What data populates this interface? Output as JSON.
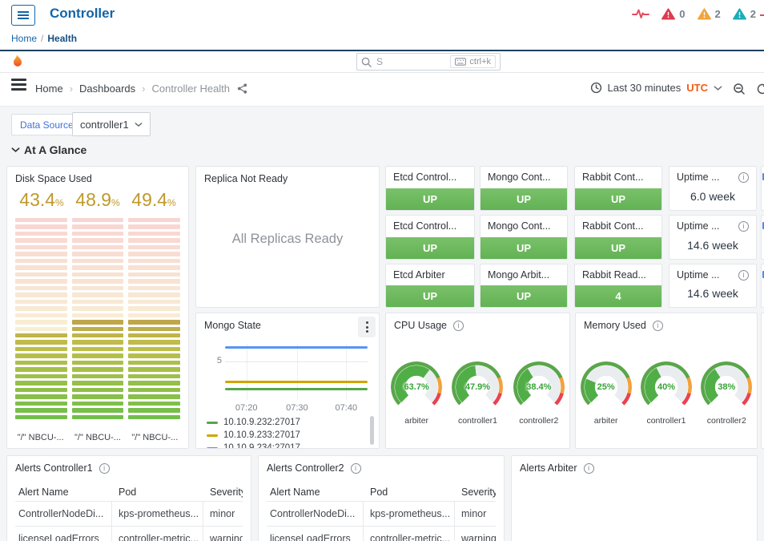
{
  "app_header": {
    "title": "Controller",
    "breadcrumb": {
      "home": "Home",
      "separator": "/",
      "current": "Health"
    },
    "alert_summary": [
      {
        "severity": "critical",
        "color": "#dd3b4e",
        "count": "0"
      },
      {
        "severity": "major",
        "color": "#f2a33c",
        "count": "2"
      },
      {
        "severity": "minor",
        "color": "#1cadb8",
        "count": "2"
      }
    ]
  },
  "grafana_header": {
    "search": {
      "placeholder": "S",
      "shortcut": "ctrl+k"
    }
  },
  "dashboard_nav": {
    "breadcrumbs": [
      "Home",
      "Dashboards",
      "Controller Health"
    ],
    "time_picker": {
      "range": "Last 30 minutes",
      "timezone": "UTC"
    }
  },
  "variables": {
    "label": "Data Source",
    "value": "controller1"
  },
  "section": {
    "title": "At A Glance"
  },
  "panels": {
    "disk": {
      "title": "Disk Space Used",
      "gauges": [
        {
          "value": "43.4",
          "unit": "%",
          "percent": 43.4,
          "label": "\"/\" NBCU-..."
        },
        {
          "value": "48.9",
          "unit": "%",
          "percent": 48.9,
          "label": "\"/\" NBCU-..."
        },
        {
          "value": "49.4",
          "unit": "%",
          "percent": 49.4,
          "label": "\"/\" NBCU-..."
        }
      ]
    },
    "replica": {
      "title": "Replica Not Ready",
      "message": "All Replicas Ready"
    },
    "status_rows": [
      [
        {
          "title": "Etcd Control...",
          "value": "UP"
        },
        {
          "title": "Mongo Cont...",
          "value": "UP"
        },
        {
          "title": "Rabbit Cont...",
          "value": "UP"
        },
        {
          "title": "Uptime ...",
          "value": "6.0 week",
          "stat": true,
          "info": true
        }
      ],
      [
        {
          "title": "Etcd Control...",
          "value": "UP"
        },
        {
          "title": "Mongo Cont...",
          "value": "UP"
        },
        {
          "title": "Rabbit Cont...",
          "value": "UP"
        },
        {
          "title": "Uptime ...",
          "value": "14.6 week",
          "stat": true,
          "info": true
        }
      ],
      [
        {
          "title": "Etcd Arbiter",
          "value": "UP"
        },
        {
          "title": "Mongo Arbit...",
          "value": "UP"
        },
        {
          "title": "Rabbit Read...",
          "value": "4"
        },
        {
          "title": "Uptime ...",
          "value": "14.6 week",
          "stat": true,
          "info": true
        }
      ]
    ],
    "mongo_state": {
      "title": "Mongo State",
      "chart_data": {
        "type": "line",
        "title": "Mongo State",
        "x_ticks": [
          "07:20",
          "07:30",
          "07:40"
        ],
        "y_ticks": [
          "5"
        ],
        "ylim": [
          0,
          8
        ],
        "grid": true,
        "legend_position": "bottom",
        "series": [
          {
            "name": "10.10.9.232:27017",
            "color": "#56a64b",
            "value": 1
          },
          {
            "name": "10.10.9.233:27017",
            "color": "#d1a400",
            "value": 2
          },
          {
            "name": "10.10.9.234:27017",
            "color": "#5794f2",
            "value": 7
          }
        ]
      }
    },
    "cpu": {
      "title": "CPU Usage",
      "gauges": [
        {
          "value": "63.7%",
          "percent": 63.7,
          "label": "arbiter"
        },
        {
          "value": "47.9%",
          "percent": 47.9,
          "label": "controller1"
        },
        {
          "value": "38.4%",
          "percent": 38.4,
          "label": "controller2"
        }
      ]
    },
    "memory": {
      "title": "Memory Used",
      "gauges": [
        {
          "value": "25%",
          "percent": 25,
          "label": "arbiter"
        },
        {
          "value": "40%",
          "percent": 40,
          "label": "controller1"
        },
        {
          "value": "38%",
          "percent": 38,
          "label": "controller2"
        }
      ]
    },
    "alert_tables": [
      {
        "title": "Alerts Controller1",
        "headers": [
          "Alert Name",
          "Pod",
          "Severity"
        ],
        "rows": [
          [
            "ControllerNodeDi...",
            "kps-prometheus...",
            "minor"
          ],
          [
            "licenseLoadErrors",
            "controller-metric...",
            "warning"
          ]
        ]
      },
      {
        "title": "Alerts Controller2",
        "headers": [
          "Alert Name",
          "Pod",
          "Severity"
        ],
        "rows": [
          [
            "ControllerNodeDi...",
            "kps-prometheus...",
            "minor"
          ],
          [
            "licenseLoadErrors",
            "controller-metric...",
            "warning"
          ]
        ]
      },
      {
        "title": "Alerts Arbiter",
        "headers": [],
        "rows": []
      }
    ]
  },
  "colors": {
    "accent_blue": "#1464a8",
    "grafana_orange": "#ef5e17",
    "status_green": "#6cba5f",
    "gauge_green": "#4fae46",
    "threshold_orange": "#f2a13c",
    "threshold_red": "#e8434f",
    "disk_value_gold": "#c0992b",
    "link_blue": "#3d71d9"
  }
}
